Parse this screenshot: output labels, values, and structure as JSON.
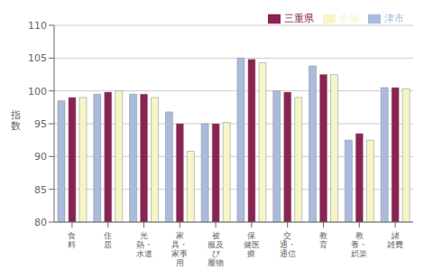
{
  "chart_data": {
    "type": "bar",
    "categories": [
      "食\n料",
      "住\n居",
      "光\n熱・\n水道",
      "家\n具・\n家事\n用",
      "被\n服及\nび\n履物",
      "保\n健医\n療",
      "交\n通・\n通信",
      "教\n育",
      "教\n養・\n娯楽",
      "諸\n雑費"
    ],
    "series": [
      {
        "name": "津市",
        "color": "#aabbdd",
        "values": [
          98.5,
          99.5,
          99.5,
          96.8,
          95.0,
          105.0,
          100.0,
          103.8,
          92.5,
          100.5
        ]
      },
      {
        "name": "三重県",
        "color": "#8b2252",
        "values": [
          99.0,
          99.8,
          99.5,
          95.0,
          95.0,
          104.8,
          99.8,
          102.5,
          93.5,
          100.5
        ]
      },
      {
        "name": "全国",
        "color": "#f5f5c8",
        "values": [
          99.0,
          100.0,
          99.0,
          90.8,
          95.2,
          104.3,
          99.0,
          102.5,
          92.5,
          100.3
        ]
      }
    ],
    "ylabel": "指\n数",
    "ylim": [
      80,
      110
    ],
    "yticks": [
      80,
      85,
      90,
      95,
      100,
      105,
      110
    ],
    "grid": true,
    "legend": "upper right"
  }
}
